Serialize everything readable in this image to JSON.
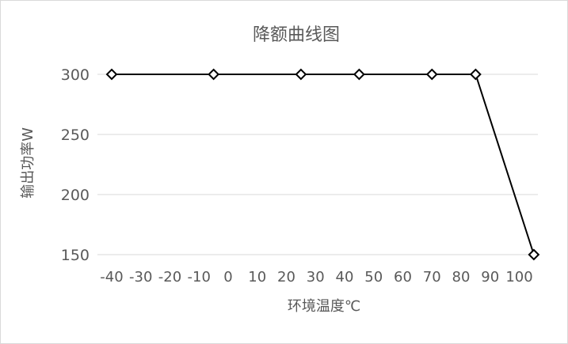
{
  "chart_data": {
    "type": "line",
    "title": "降额曲线图",
    "xlabel": "环境温度℃",
    "ylabel": "输出功率W",
    "x_ticks": [
      "-40",
      "-30",
      "-20",
      "-10",
      "0",
      "10",
      "20",
      "30",
      "40",
      "50",
      "60",
      "70",
      "80",
      "90",
      "100"
    ],
    "y_ticks": [
      150,
      200,
      250,
      300
    ],
    "xlim": [
      -40,
      100
    ],
    "ylim": [
      150,
      300
    ],
    "grid": true,
    "legend": "none",
    "series": [
      {
        "x": [
          -40,
          -5,
          25,
          45,
          70,
          85,
          105
        ],
        "y": [
          300,
          300,
          300,
          300,
          300,
          300,
          150
        ]
      }
    ]
  }
}
